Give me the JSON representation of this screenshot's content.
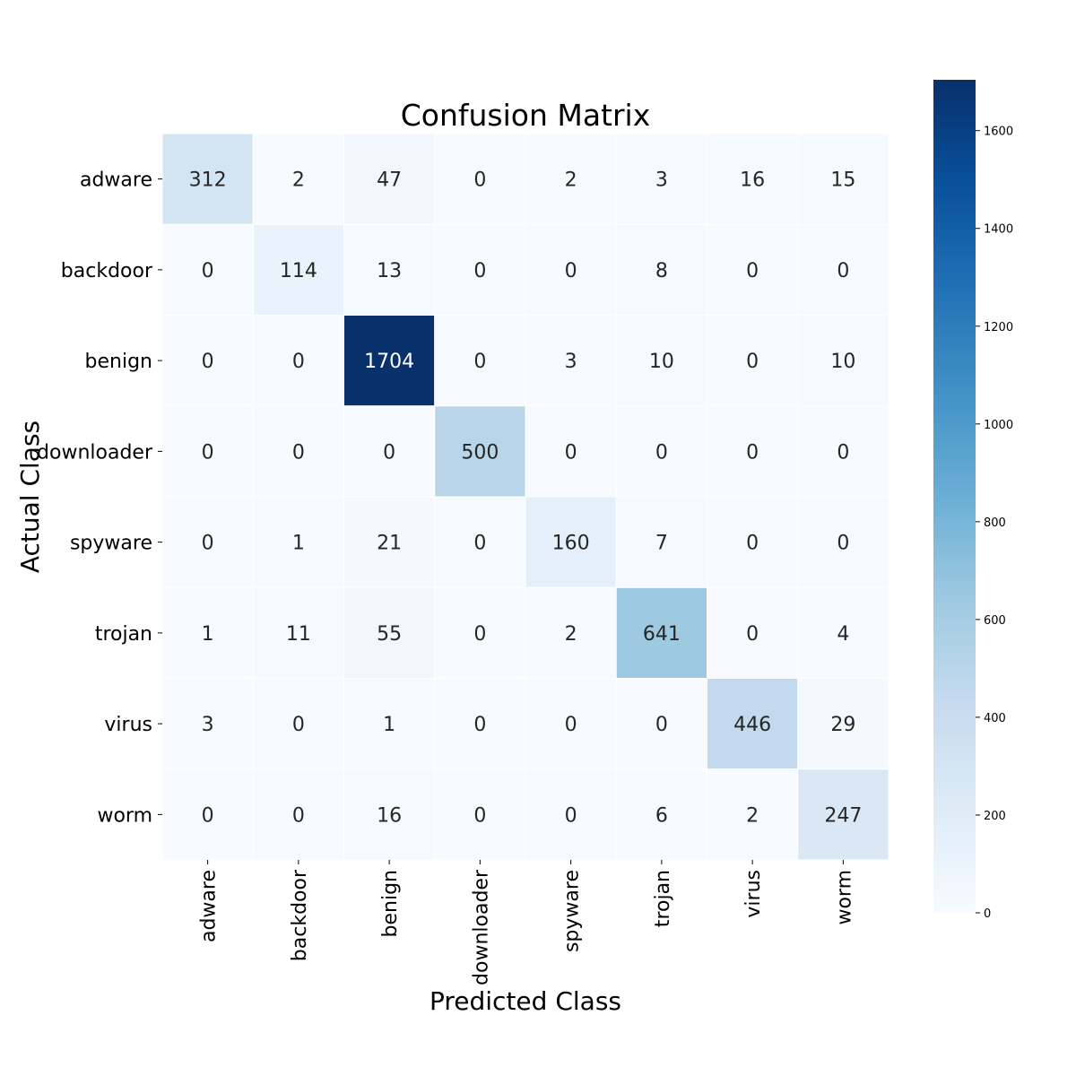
{
  "chart_data": {
    "type": "heatmap",
    "title": "Confusion Matrix",
    "xlabel": "Predicted Class",
    "ylabel": "Actual Class",
    "x_categories": [
      "adware",
      "backdoor",
      "benign",
      "downloader",
      "spyware",
      "trojan",
      "virus",
      "worm"
    ],
    "y_categories": [
      "adware",
      "backdoor",
      "benign",
      "downloader",
      "spyware",
      "trojan",
      "virus",
      "worm"
    ],
    "matrix": [
      [
        312,
        2,
        47,
        0,
        2,
        3,
        16,
        15
      ],
      [
        0,
        114,
        13,
        0,
        0,
        8,
        0,
        0
      ],
      [
        0,
        0,
        1704,
        0,
        3,
        10,
        0,
        10
      ],
      [
        0,
        0,
        0,
        500,
        0,
        0,
        0,
        0
      ],
      [
        0,
        1,
        21,
        0,
        160,
        7,
        0,
        0
      ],
      [
        1,
        11,
        55,
        0,
        2,
        641,
        0,
        4
      ],
      [
        3,
        0,
        1,
        0,
        0,
        0,
        446,
        29
      ],
      [
        0,
        0,
        16,
        0,
        0,
        6,
        2,
        247
      ]
    ],
    "colormap": "Blues",
    "colorbar": {
      "range": [
        0,
        1704
      ],
      "ticks": [
        0,
        200,
        400,
        600,
        800,
        1000,
        1200,
        1400,
        1600
      ]
    },
    "grid": false,
    "legend": "colorbar-right"
  }
}
